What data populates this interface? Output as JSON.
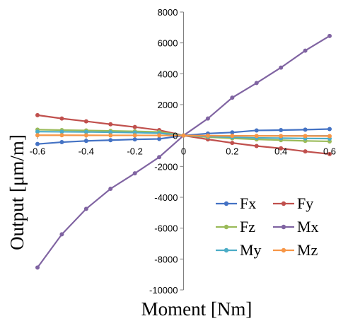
{
  "chart_data": {
    "type": "line",
    "xlabel": "Moment [Nm]",
    "ylabel": "Output [μm/m]",
    "xlim": [
      -0.6,
      0.6
    ],
    "ylim": [
      -10000,
      8000
    ],
    "x_ticks": [
      "-0.6",
      "-0.4",
      "-0.2",
      "0",
      "0.2",
      "0.4",
      "0.6"
    ],
    "y_ticks": [
      "8000",
      "6000",
      "4000",
      "2000",
      "0",
      "-2000",
      "-4000",
      "-6000",
      "-8000",
      "-10000"
    ],
    "x": [
      -0.6,
      -0.5,
      -0.4,
      -0.3,
      -0.2,
      -0.1,
      0,
      0.1,
      0.2,
      0.3,
      0.4,
      0.5,
      0.6
    ],
    "grid": false,
    "legend_position": "bottom-right",
    "series": [
      {
        "name": "Fx",
        "color": "#4472C4",
        "values": [
          -550,
          -430,
          -350,
          -300,
          -250,
          -220,
          0,
          130,
          200,
          330,
          350,
          380,
          420
        ]
      },
      {
        "name": "Fy",
        "color": "#C0504D",
        "values": [
          1320,
          1100,
          920,
          730,
          550,
          350,
          0,
          -250,
          -480,
          -680,
          -830,
          -1030,
          -1200
        ]
      },
      {
        "name": "Fz",
        "color": "#9BBB59",
        "values": [
          380,
          350,
          330,
          300,
          270,
          230,
          0,
          -100,
          -180,
          -250,
          -300,
          -350,
          -380
        ]
      },
      {
        "name": "Mx",
        "color": "#8064A2",
        "values": [
          -8550,
          -6400,
          -4750,
          -3450,
          -2450,
          -1400,
          0,
          1100,
          2450,
          3400,
          4400,
          5500,
          6450
        ]
      },
      {
        "name": "My",
        "color": "#4BACC6",
        "values": [
          250,
          240,
          230,
          210,
          190,
          150,
          0,
          -60,
          -110,
          -150,
          -170,
          -190,
          -200
        ]
      },
      {
        "name": "Mz",
        "color": "#F79646",
        "values": [
          20,
          20,
          15,
          10,
          10,
          5,
          0,
          -10,
          -20,
          -25,
          -30,
          -35,
          -40
        ]
      }
    ]
  }
}
